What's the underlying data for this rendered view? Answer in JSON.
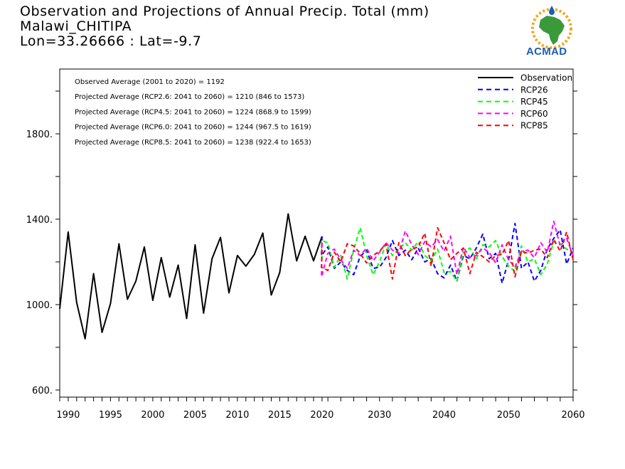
{
  "title": {
    "line1": "Observation and Projections of Annual Precip. Total (mm)",
    "line2": "Malawi_CHITIPA",
    "line3": "Lon=33.26666 : Lat=-9.7"
  },
  "logo": {
    "text": "ACMAD"
  },
  "colors": {
    "observation": "#000000",
    "rcp26": "#0000ff",
    "rcp45": "#00ff00",
    "rcp60": "#ff00ff",
    "rcp85": "#ff0000"
  },
  "stats": [
    "Observed Average (2001 to 2020) = 1192",
    "Projected Average (RCP2.6: 2041 to 2060) = 1210 (846 to 1573)",
    "Projected Average (RCP4.5: 2041 to 2060) = 1224 (868.9 to 1599)",
    "Projected Average (RCP6.0: 2041 to 2060) = 1244 (967.5 to 1619)",
    "Projected Average (RCP8.5: 2041 to 2060) = 1238 (922.4 to 1653)"
  ],
  "chart_data": {
    "type": "line",
    "title": "Observation and Projections of Annual Precip. Total (mm)",
    "xlabel": "",
    "ylabel": "",
    "ylim": [
      560,
      2100
    ],
    "y_ticks": [
      600,
      1000,
      1400,
      1800
    ],
    "y_tick_labels": [
      "600.",
      "1000.",
      "1400.",
      "1800."
    ],
    "x_ticks": [
      1990,
      1995,
      2000,
      2005,
      2010,
      2015,
      2020,
      2030,
      2040,
      2050,
      2060
    ],
    "x_tick_labels": [
      "1990",
      "1995",
      "2000",
      "2005",
      "2010",
      "2015",
      "2020",
      "2030",
      "2040",
      "2050",
      "2060"
    ],
    "legend_position": "top-right",
    "grid": false,
    "series": [
      {
        "name": "Observation",
        "style": "solid",
        "x": [
          1989,
          1990,
          1991,
          1992,
          1993,
          1994,
          1995,
          1996,
          1997,
          1998,
          1999,
          2000,
          2001,
          2002,
          2003,
          2004,
          2005,
          2006,
          2007,
          2008,
          2009,
          2010,
          2011,
          2012,
          2013,
          2014,
          2015,
          2016,
          2017,
          2018,
          2019,
          2020
        ],
        "values": [
          980,
          1340,
          1010,
          840,
          1145,
          870,
          1005,
          1285,
          1025,
          1110,
          1270,
          1020,
          1220,
          1035,
          1185,
          935,
          1280,
          960,
          1215,
          1315,
          1055,
          1230,
          1180,
          1235,
          1335,
          1045,
          1150,
          1425,
          1205,
          1320,
          1205,
          1320
        ]
      },
      {
        "name": "RCP26",
        "style": "dashed",
        "x": [
          2020,
          2021,
          2022,
          2023,
          2024,
          2025,
          2026,
          2027,
          2028,
          2029,
          2030,
          2031,
          2032,
          2033,
          2034,
          2035,
          2036,
          2037,
          2038,
          2039,
          2040,
          2041,
          2042,
          2043,
          2044,
          2045,
          2046,
          2047,
          2048,
          2049,
          2050,
          2051,
          2052,
          2053,
          2054,
          2055,
          2056,
          2057,
          2058,
          2059,
          2060
        ],
        "values": [
          1320,
          1230,
          1270,
          1170,
          1200,
          1160,
          1140,
          1225,
          1255,
          1170,
          1175,
          1220,
          1300,
          1230,
          1255,
          1210,
          1265,
          1200,
          1215,
          1145,
          1125,
          1185,
          1110,
          1230,
          1215,
          1265,
          1330,
          1215,
          1240,
          1100,
          1210,
          1380,
          1170,
          1200,
          1110,
          1160,
          1260,
          1310,
          1350,
          1190,
          1265
        ]
      },
      {
        "name": "RCP45",
        "style": "dashed",
        "x": [
          2020,
          2021,
          2022,
          2023,
          2024,
          2025,
          2026,
          2027,
          2028,
          2029,
          2030,
          2031,
          2032,
          2033,
          2034,
          2035,
          2036,
          2037,
          2038,
          2039,
          2040,
          2041,
          2042,
          2043,
          2044,
          2045,
          2046,
          2047,
          2048,
          2049,
          2050,
          2051,
          2052,
          2053,
          2054,
          2055,
          2056,
          2057,
          2058,
          2059,
          2060
        ],
        "values": [
          1210,
          1300,
          1290,
          1175,
          1230,
          1120,
          1255,
          1360,
          1230,
          1140,
          1200,
          1285,
          1230,
          1260,
          1290,
          1255,
          1295,
          1230,
          1205,
          1260,
          1150,
          1155,
          1110,
          1245,
          1265,
          1215,
          1280,
          1270,
          1300,
          1225,
          1180,
          1155,
          1275,
          1200,
          1215,
          1140,
          1190,
          1295,
          1285,
          1260,
          1240
        ]
      },
      {
        "name": "RCP60",
        "style": "dashed",
        "x": [
          2020,
          2021,
          2022,
          2023,
          2024,
          2025,
          2026,
          2027,
          2028,
          2029,
          2030,
          2031,
          2032,
          2033,
          2034,
          2035,
          2036,
          2037,
          2038,
          2039,
          2040,
          2041,
          2042,
          2043,
          2044,
          2045,
          2046,
          2047,
          2048,
          2049,
          2050,
          2051,
          2052,
          2053,
          2054,
          2055,
          2056,
          2057,
          2058,
          2059,
          2060
        ],
        "values": [
          1290,
          1130,
          1240,
          1260,
          1210,
          1170,
          1255,
          1230,
          1265,
          1205,
          1245,
          1290,
          1255,
          1240,
          1345,
          1280,
          1235,
          1295,
          1270,
          1305,
          1250,
          1320,
          1140,
          1270,
          1220,
          1230,
          1265,
          1245,
          1195,
          1280,
          1210,
          1175,
          1250,
          1255,
          1220,
          1290,
          1245,
          1390,
          1275,
          1310,
          1230
        ]
      },
      {
        "name": "RCP85",
        "style": "dashed",
        "x": [
          2020,
          2021,
          2022,
          2023,
          2024,
          2025,
          2026,
          2027,
          2028,
          2029,
          2030,
          2031,
          2032,
          2033,
          2034,
          2035,
          2036,
          2037,
          2038,
          2039,
          2040,
          2041,
          2042,
          2043,
          2044,
          2045,
          2046,
          2047,
          2048,
          2049,
          2050,
          2051,
          2052,
          2053,
          2054,
          2055,
          2056,
          2057,
          2058,
          2059,
          2060
        ],
        "values": [
          1255,
          1175,
          1160,
          1245,
          1200,
          1285,
          1275,
          1240,
          1195,
          1230,
          1250,
          1285,
          1120,
          1290,
          1230,
          1260,
          1270,
          1335,
          1180,
          1360,
          1290,
          1210,
          1240,
          1265,
          1145,
          1245,
          1225,
          1200,
          1230,
          1235,
          1300,
          1130,
          1250,
          1240,
          1255,
          1260,
          1220,
          1305,
          1250,
          1340,
          1210
        ]
      }
    ]
  }
}
